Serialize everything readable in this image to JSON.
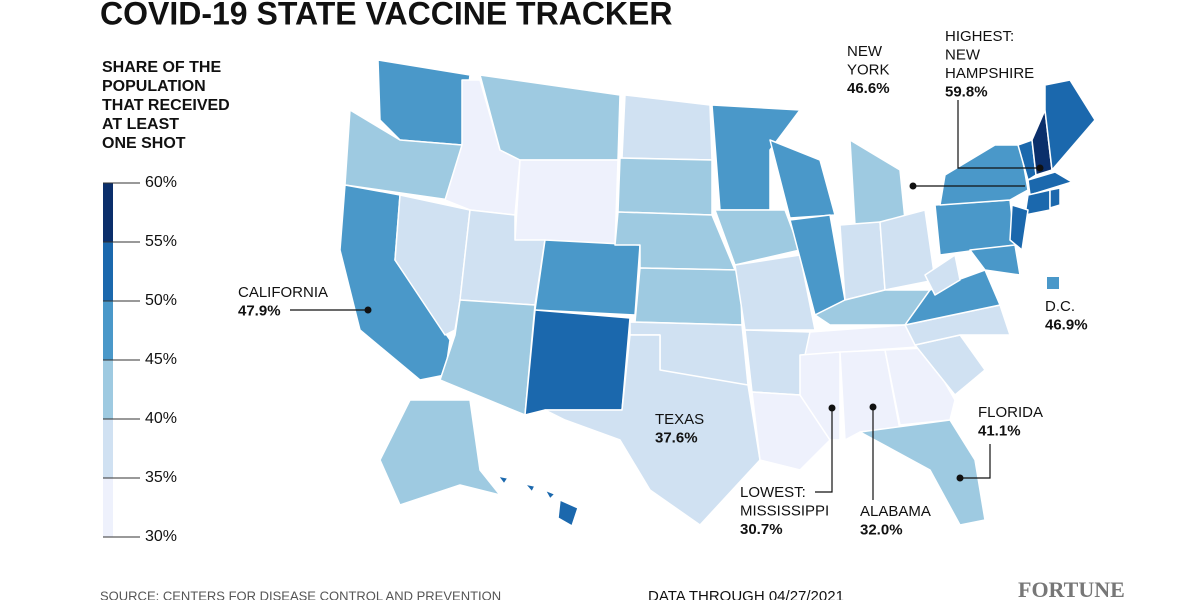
{
  "title": "COVID-19 STATE VACCINE TRACKER",
  "legend": {
    "title_lines": [
      "SHARE OF THE",
      "POPULATION",
      "THAT RECEIVED",
      "AT LEAST",
      "ONE SHOT"
    ],
    "ticks": [
      {
        "value": 60,
        "label": "60%"
      },
      {
        "value": 55,
        "label": "55%"
      },
      {
        "value": 50,
        "label": "50%"
      },
      {
        "value": 45,
        "label": "45%"
      },
      {
        "value": 40,
        "label": "40%"
      },
      {
        "value": 35,
        "label": "35%"
      },
      {
        "value": 30,
        "label": "30%"
      }
    ],
    "colors": [
      "#0b2f6b",
      "#1b68ad",
      "#4a98c9",
      "#9ecae1",
      "#d0e1f2",
      "#eef1fc"
    ]
  },
  "callouts": [
    {
      "label_lines": [
        "CALIFORNIA"
      ],
      "value": 47.9,
      "value_label": "47.9%"
    },
    {
      "label_lines": [
        "TEXAS"
      ],
      "value": 37.6,
      "value_label": "37.6%"
    },
    {
      "label_lines": [
        "FLORIDA"
      ],
      "value": 41.1,
      "value_label": "41.1%"
    },
    {
      "label_lines": [
        "LOWEST:",
        "MISSISSIPPI"
      ],
      "value": 30.7,
      "value_label": "30.7%"
    },
    {
      "label_lines": [
        "ALABAMA"
      ],
      "value": 32.0,
      "value_label": "32.0%"
    },
    {
      "label_lines": [
        "NEW",
        "YORK"
      ],
      "value": 46.6,
      "value_label": "46.6%"
    },
    {
      "label_lines": [
        "HIGHEST:",
        "NEW",
        "HAMPSHIRE"
      ],
      "value": 59.8,
      "value_label": "59.8%"
    },
    {
      "label_lines": [
        "D.C."
      ],
      "value": 46.9,
      "value_label": "46.9%"
    }
  ],
  "source": "SOURCE: CENTERS FOR DISEASE CONTROL AND PREVENTION",
  "data_through": "DATA THROUGH 04/27/2021",
  "brand": "FORTUNE"
}
